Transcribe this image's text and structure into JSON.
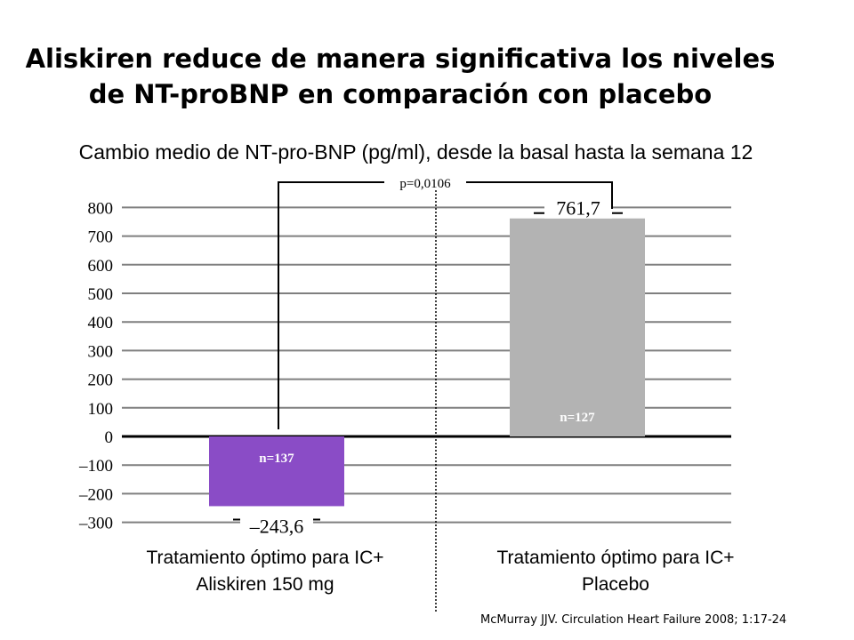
{
  "title": {
    "line1": "Aliskiren reduce de manera significativa los niveles",
    "line2": "de NT-proBNP en comparación con placebo"
  },
  "citation": "McMurray JJV. Circulation Heart Failure 2008; 1:17-24",
  "chart_data": {
    "type": "bar",
    "title": "Cambio medio de NT-pro-BNP (pg/ml), desde la basal hasta la semana 12",
    "categories": [
      [
        "Tratamiento óptimo para IC+",
        "Aliskiren 150 mg"
      ],
      [
        "Tratamiento óptimo para IC+",
        "Placebo"
      ]
    ],
    "values": [
      -243.6,
      761.7
    ],
    "value_labels": [
      "–243,6",
      "761,7"
    ],
    "n_labels": [
      "n=137",
      "n=127"
    ],
    "colors": [
      "#8a4cc6",
      "#b3b3b3"
    ],
    "ylim": [
      -300,
      800
    ],
    "yticks": [
      800,
      700,
      600,
      500,
      400,
      300,
      200,
      100,
      0,
      -100,
      -200,
      -300
    ],
    "ytick_labels": [
      "800",
      "700",
      "600",
      "500",
      "400",
      "300",
      "200",
      "100",
      "0",
      "–100",
      "–200",
      "–300"
    ],
    "grid": true,
    "annotation": "p=0,0106"
  }
}
